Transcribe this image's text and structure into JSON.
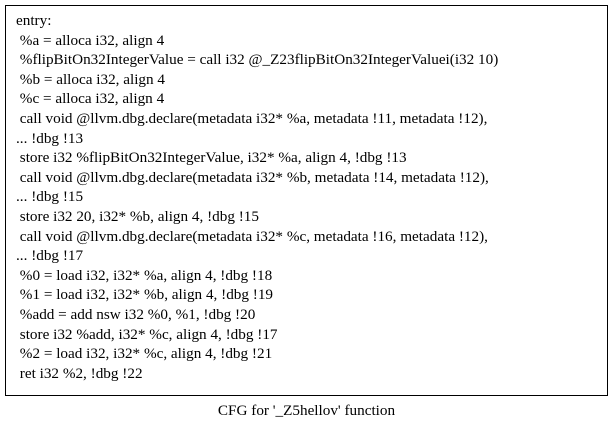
{
  "node": {
    "lines": [
      "entry:",
      " %a = alloca i32, align 4",
      " %flipBitOn32IntegerValue = call i32 @_Z23flipBitOn32IntegerValuei(i32 10)",
      " %b = alloca i32, align 4",
      " %c = alloca i32, align 4",
      " call void @llvm.dbg.declare(metadata i32* %a, metadata !11, metadata !12),",
      "... !dbg !13",
      " store i32 %flipBitOn32IntegerValue, i32* %a, align 4, !dbg !13",
      " call void @llvm.dbg.declare(metadata i32* %b, metadata !14, metadata !12),",
      "... !dbg !15",
      " store i32 20, i32* %b, align 4, !dbg !15",
      " call void @llvm.dbg.declare(metadata i32* %c, metadata !16, metadata !12),",
      "... !dbg !17",
      " %0 = load i32, i32* %a, align 4, !dbg !18",
      " %1 = load i32, i32* %b, align 4, !dbg !19",
      " %add = add nsw i32 %0, %1, !dbg !20",
      " store i32 %add, i32* %c, align 4, !dbg !17",
      " %2 = load i32, i32* %c, align 4, !dbg !21",
      " ret i32 %2, !dbg !22"
    ]
  },
  "caption": "CFG for '_Z5hellov' function"
}
